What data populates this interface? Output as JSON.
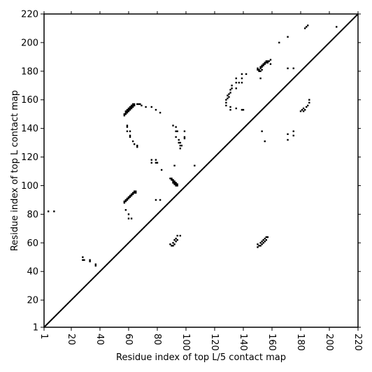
{
  "chart_data": {
    "type": "scatter",
    "title": "",
    "xlabel": "Residue index of top L/5 contact map",
    "ylabel": "Residue index of top L contact map",
    "xlim": [
      1,
      220
    ],
    "ylim": [
      1,
      220
    ],
    "x_ticks": [
      1,
      20,
      40,
      60,
      80,
      100,
      120,
      140,
      160,
      180,
      200,
      220
    ],
    "y_ticks": [
      1,
      20,
      40,
      60,
      80,
      100,
      120,
      140,
      160,
      180,
      200,
      220
    ],
    "x_tick_labels": [
      "1",
      "20",
      "40",
      "60",
      "80",
      "100",
      "120",
      "140",
      "160",
      "180",
      "200",
      "220"
    ],
    "y_tick_labels": [
      "1",
      "20",
      "40",
      "60",
      "80",
      "100",
      "120",
      "140",
      "160",
      "180",
      "200",
      "220"
    ],
    "grid": false,
    "legend": "none",
    "diagonal": [
      [
        1,
        1
      ],
      [
        220,
        220
      ]
    ],
    "points_lower": [
      [
        57,
        149
      ],
      [
        57,
        150
      ],
      [
        58,
        150
      ],
      [
        58,
        151
      ],
      [
        58,
        152
      ],
      [
        59,
        151
      ],
      [
        59,
        152
      ],
      [
        59,
        153
      ],
      [
        60,
        152
      ],
      [
        60,
        153
      ],
      [
        60,
        154
      ],
      [
        61,
        153
      ],
      [
        61,
        154
      ],
      [
        61,
        155
      ],
      [
        62,
        154
      ],
      [
        62,
        155
      ],
      [
        62,
        156
      ],
      [
        63,
        155
      ],
      [
        63,
        156
      ],
      [
        63,
        157
      ],
      [
        64,
        156
      ],
      [
        64,
        157
      ],
      [
        66,
        157
      ],
      [
        67,
        157
      ],
      [
        68,
        157
      ],
      [
        69,
        156
      ],
      [
        72,
        155
      ],
      [
        76,
        155
      ],
      [
        79,
        153
      ],
      [
        82,
        151
      ],
      [
        59,
        142
      ],
      [
        59,
        141
      ],
      [
        59,
        138
      ],
      [
        61,
        138
      ],
      [
        61,
        135
      ],
      [
        61,
        134
      ],
      [
        63,
        131
      ],
      [
        64,
        129
      ],
      [
        66,
        128
      ],
      [
        66,
        127
      ],
      [
        76,
        118
      ],
      [
        76,
        116
      ],
      [
        79,
        118
      ],
      [
        79,
        116
      ],
      [
        80,
        116
      ],
      [
        83,
        111
      ],
      [
        57,
        88
      ],
      [
        57,
        89
      ],
      [
        58,
        89
      ],
      [
        58,
        90
      ],
      [
        59,
        90
      ],
      [
        59,
        91
      ],
      [
        60,
        91
      ],
      [
        60,
        92
      ],
      [
        61,
        92
      ],
      [
        61,
        93
      ],
      [
        62,
        93
      ],
      [
        62,
        94
      ],
      [
        63,
        94
      ],
      [
        63,
        95
      ],
      [
        64,
        95
      ],
      [
        64,
        96
      ],
      [
        65,
        95
      ],
      [
        65,
        96
      ],
      [
        58,
        83
      ],
      [
        60,
        80
      ],
      [
        60,
        77
      ],
      [
        62,
        77
      ],
      [
        79,
        90
      ],
      [
        82,
        90
      ],
      [
        89,
        105
      ],
      [
        90,
        105
      ],
      [
        90,
        104
      ],
      [
        91,
        104
      ],
      [
        91,
        103
      ],
      [
        91,
        102
      ],
      [
        92,
        103
      ],
      [
        92,
        102
      ],
      [
        92,
        101
      ],
      [
        93,
        102
      ],
      [
        93,
        101
      ],
      [
        93,
        100
      ],
      [
        94,
        101
      ],
      [
        94,
        100
      ],
      [
        91,
        142
      ],
      [
        93,
        141
      ],
      [
        93,
        138
      ],
      [
        94,
        138
      ],
      [
        93,
        134
      ],
      [
        95,
        132
      ],
      [
        95,
        130
      ],
      [
        96,
        130
      ],
      [
        96,
        128
      ],
      [
        97,
        128
      ],
      [
        96,
        126
      ],
      [
        99,
        138
      ],
      [
        99,
        134
      ],
      [
        99,
        133
      ],
      [
        92,
        114
      ],
      [
        106,
        114
      ],
      [
        89,
        59
      ],
      [
        90,
        58
      ],
      [
        91,
        58
      ],
      [
        91,
        60
      ],
      [
        92,
        59
      ],
      [
        92,
        62
      ],
      [
        93,
        61
      ],
      [
        93,
        63
      ],
      [
        94,
        62
      ],
      [
        94,
        65
      ],
      [
        96,
        65
      ],
      [
        28,
        50
      ],
      [
        28,
        48
      ],
      [
        29,
        48
      ],
      [
        33,
        48
      ],
      [
        33,
        47
      ],
      [
        37,
        45
      ],
      [
        37,
        44
      ],
      [
        4,
        82
      ],
      [
        8,
        82
      ],
      [
        128,
        160
      ],
      [
        128,
        158
      ],
      [
        128,
        156
      ],
      [
        129,
        161
      ],
      [
        129,
        163
      ],
      [
        130,
        162
      ],
      [
        130,
        164
      ],
      [
        131,
        167
      ],
      [
        131,
        165
      ],
      [
        131,
        155
      ],
      [
        132,
        168
      ],
      [
        132,
        170
      ],
      [
        135,
        168
      ],
      [
        135,
        172
      ],
      [
        135,
        175
      ],
      [
        137,
        172
      ],
      [
        139,
        172
      ],
      [
        139,
        175
      ],
      [
        139,
        178
      ],
      [
        142,
        178
      ],
      [
        131,
        153
      ],
      [
        135,
        154
      ],
      [
        139,
        153
      ],
      [
        140,
        153
      ],
      [
        150,
        181
      ],
      [
        150,
        182
      ],
      [
        151,
        181
      ],
      [
        151,
        180
      ],
      [
        152,
        182
      ],
      [
        152,
        183
      ],
      [
        152,
        180
      ],
      [
        153,
        181
      ],
      [
        153,
        183
      ],
      [
        153,
        184
      ],
      [
        154,
        184
      ],
      [
        154,
        185
      ],
      [
        155,
        185
      ],
      [
        155,
        186
      ],
      [
        156,
        186
      ],
      [
        156,
        187
      ],
      [
        157,
        186
      ],
      [
        157,
        187
      ],
      [
        158,
        187
      ],
      [
        159,
        188
      ],
      [
        152,
        175
      ],
      [
        159,
        185
      ],
      [
        165,
        200
      ],
      [
        171,
        204
      ],
      [
        171,
        182
      ],
      [
        175,
        182
      ],
      [
        183,
        210
      ],
      [
        184,
        211
      ],
      [
        185,
        212
      ],
      [
        205,
        211
      ],
      [
        180,
        152
      ],
      [
        181,
        153
      ],
      [
        182,
        152
      ],
      [
        182,
        154
      ],
      [
        183,
        153
      ],
      [
        184,
        155
      ],
      [
        185,
        156
      ],
      [
        186,
        158
      ],
      [
        186,
        160
      ],
      [
        171,
        136
      ],
      [
        171,
        132
      ],
      [
        175,
        138
      ],
      [
        175,
        135
      ],
      [
        153,
        138
      ],
      [
        155,
        131
      ],
      [
        150,
        57
      ],
      [
        150,
        59
      ],
      [
        151,
        58
      ],
      [
        152,
        58
      ],
      [
        152,
        60
      ],
      [
        153,
        59
      ],
      [
        153,
        61
      ],
      [
        154,
        60
      ],
      [
        154,
        62
      ],
      [
        155,
        61
      ],
      [
        155,
        63
      ],
      [
        156,
        62
      ],
      [
        156,
        64
      ],
      [
        157,
        64
      ]
    ]
  }
}
